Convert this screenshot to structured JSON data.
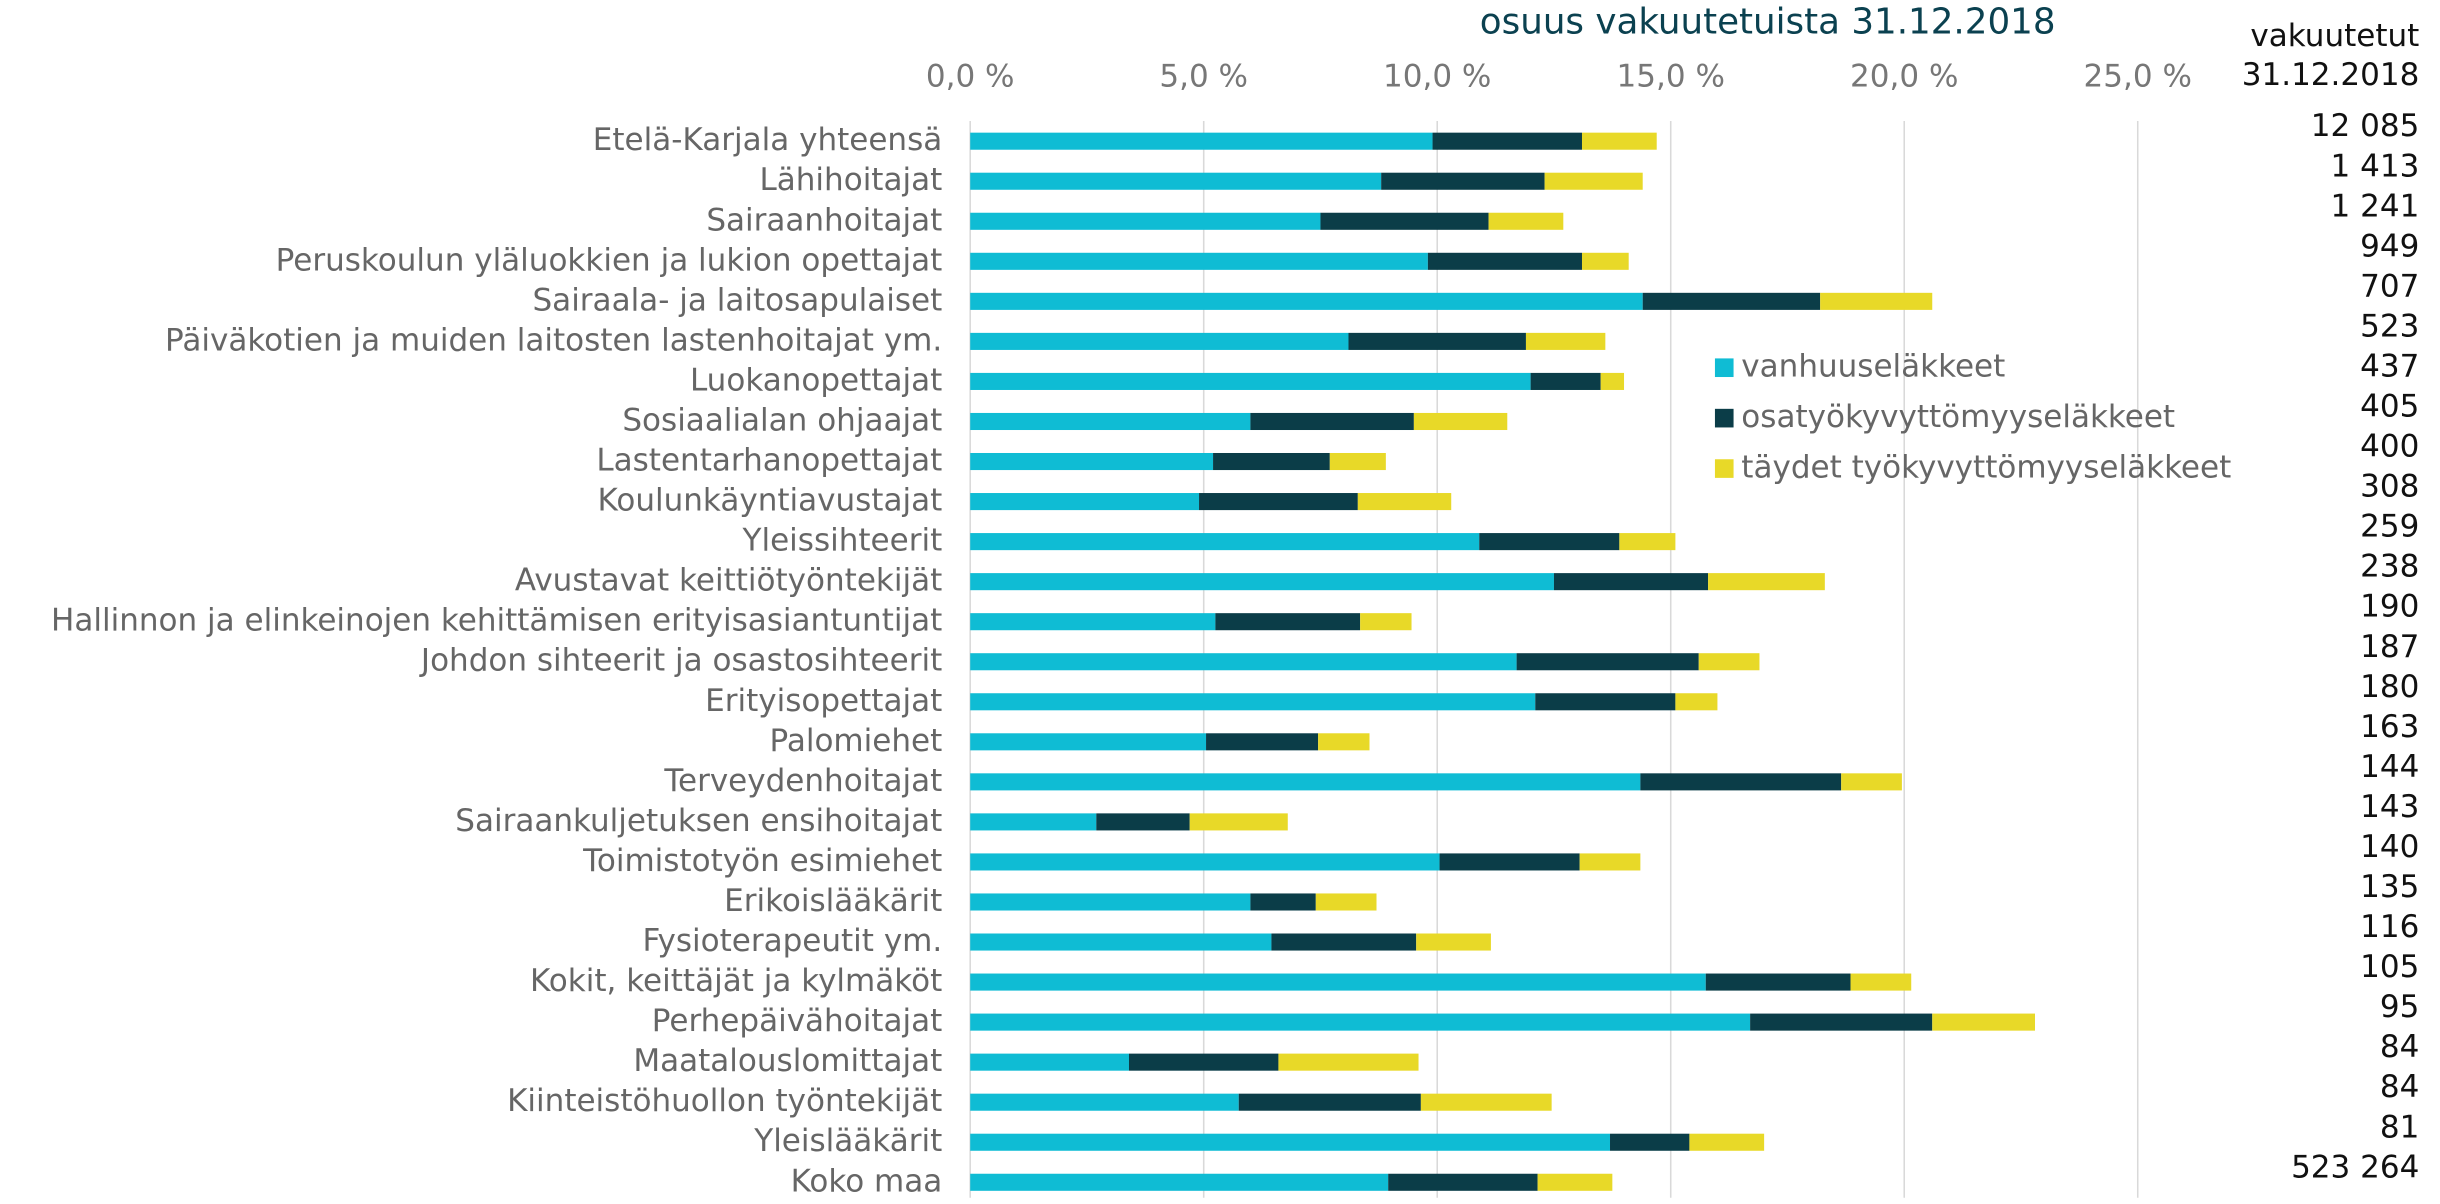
{
  "chart_data": {
    "type": "stacked_barh",
    "title": "osuus vakuutetuista 31.12.2018",
    "categories": [
      "Etelä-Karjala yhteensä",
      "Lähihoitajat",
      "Sairaanhoitajat",
      "Peruskoulun yläluokkien ja lukion opettajat",
      "Sairaala- ja laitosapulaiset",
      "Päiväkotien ja muiden laitosten lastenhoitajat ym.",
      "Luokanopettajat",
      "Sosiaalialan ohjaajat",
      "Lastentarhanopettajat",
      "Koulunkäyntiavustajat",
      "Yleissihteerit",
      "Avustavat keittiötyöntekijät",
      "Hallinnon ja elinkeinojen kehittämisen erityisasiantuntijat",
      "Johdon sihteerit ja osastosihteerit",
      "Erityisopettajat",
      "Palomiehet",
      "Terveydenhoitajat",
      "Sairaankuljetuksen ensihoitajat",
      "Toimistotyön esimiehet",
      "Erikoislääkärit",
      "Fysioterapeutit ym.",
      "Kokit, keittäjät ja kylmäköt",
      "Perhepäivähoitajat",
      "Maatalouslomittajat",
      "Kiinteistöhuollon työntekijät",
      "Yleislääkärit",
      "Koko maa"
    ],
    "series": [
      {
        "name": "vanhuuseläkkeet",
        "color": "#0fbcd4",
        "values": [
          9.9,
          8.8,
          7.5,
          9.8,
          14.4,
          8.1,
          12.0,
          6.0,
          5.2,
          4.9,
          10.9,
          12.5,
          5.25,
          11.7,
          12.1,
          5.05,
          14.35,
          2.7,
          10.05,
          6.0,
          6.45,
          15.75,
          16.7,
          3.4,
          5.75,
          13.7,
          8.95
        ]
      },
      {
        "name": "osatyökyvyttömyyseläkkeet",
        "color": "#0b3d48",
        "values": [
          3.2,
          3.5,
          3.6,
          3.3,
          3.8,
          3.8,
          1.5,
          3.5,
          2.5,
          3.4,
          3.0,
          3.3,
          3.1,
          3.9,
          3.0,
          2.4,
          4.3,
          2.0,
          3.0,
          1.4,
          3.1,
          3.1,
          3.9,
          3.2,
          3.9,
          1.7,
          3.2
        ]
      },
      {
        "name": "täydet työkyvyttömyyseläkkeet",
        "color": "#e8d928",
        "values": [
          1.6,
          2.1,
          1.6,
          1.0,
          2.4,
          1.7,
          0.5,
          2.0,
          1.2,
          2.0,
          1.2,
          2.5,
          1.1,
          1.3,
          0.9,
          1.1,
          1.3,
          2.1,
          1.3,
          1.3,
          1.6,
          1.3,
          2.2,
          3.0,
          2.8,
          1.6,
          1.6
        ]
      }
    ],
    "xlim": [
      0,
      31.5
    ],
    "xticks": [
      {
        "value": 0,
        "label": "0,0 %"
      },
      {
        "value": 5,
        "label": "5,0 %"
      },
      {
        "value": 10,
        "label": "10,0 %"
      },
      {
        "value": 15,
        "label": "15,0 %"
      },
      {
        "value": 20,
        "label": "20,0 %"
      },
      {
        "value": 25,
        "label": "25,0 %"
      }
    ],
    "grid": true,
    "insured": {
      "header": [
        "vakuutetut",
        "31.12.2018"
      ],
      "values": [
        12085,
        1413,
        1241,
        949,
        707,
        523,
        437,
        405,
        400,
        308,
        259,
        238,
        190,
        187,
        180,
        163,
        144,
        143,
        140,
        135,
        116,
        105,
        95,
        84,
        84,
        81,
        523264
      ],
      "value_labels": [
        "12 085",
        "1 413",
        "1 241",
        "949",
        "707",
        "523",
        "437",
        "405",
        "400",
        "308",
        "259",
        "238",
        "190",
        "187",
        "180",
        "163",
        "144",
        "143",
        "140",
        "135",
        "116",
        "105",
        "95",
        "84",
        "84",
        "81",
        "523 264"
      ]
    }
  }
}
